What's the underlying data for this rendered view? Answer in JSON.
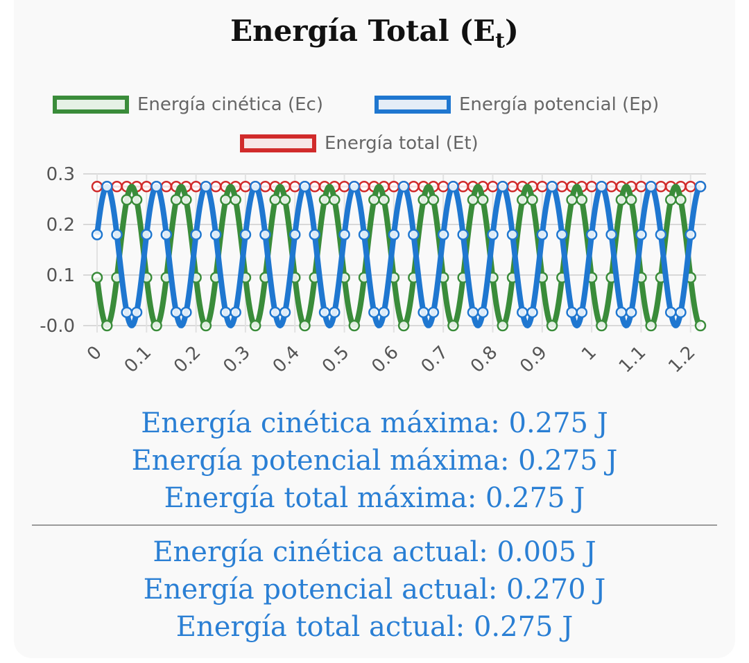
{
  "title_main": "Energía Total (E",
  "title_sub": "t",
  "title_end": ")",
  "legend": [
    {
      "label": "Energía cinética (Ec)",
      "color": "#3a8c3a",
      "fill": "#e6f1e6"
    },
    {
      "label": "Energía potencial (Ep)",
      "color": "#1f77d0",
      "fill": "#e4edf7"
    },
    {
      "label": "Energía total (Et)",
      "color": "#d12b2b",
      "fill": "#f7e6e6"
    }
  ],
  "chart_data": {
    "type": "line",
    "x_tick_labels": [
      "0",
      "0.1",
      "0.2",
      "0.3",
      "0.4",
      "0.5",
      "0.6",
      "0.7",
      "0.8",
      "0.9",
      "1",
      "1.1",
      "1.2"
    ],
    "y_tick_labels": [
      "0.3",
      "0.2",
      "0.1",
      "-0.0"
    ],
    "ylim": [
      0,
      0.3
    ],
    "xlim": [
      0,
      1.22
    ],
    "grid": true,
    "legend_position": "top",
    "sample_interval": 0.02,
    "period": 0.2,
    "series": [
      {
        "name": "Energía cinética (Ec)",
        "color": "#3a8c3a",
        "amplitude": 0.275,
        "function": "E*sin^2(w*(t-0.02))"
      },
      {
        "name": "Energía potencial (Ep)",
        "color": "#1f77d0",
        "amplitude": 0.275,
        "function": "E*cos^2(w*(t-0.02))"
      },
      {
        "name": "Energía total (Et)",
        "color": "#d12b2b",
        "value": 0.275
      }
    ]
  },
  "stats_max": [
    "Energía cinética máxima: 0.275 J",
    "Energía potencial máxima: 0.275 J",
    "Energía total máxima: 0.275 J"
  ],
  "stats_current": [
    "Energía cinética actual: 0.005 J",
    "Energía potencial actual: 0.270 J",
    "Energía total actual: 0.275 J"
  ]
}
